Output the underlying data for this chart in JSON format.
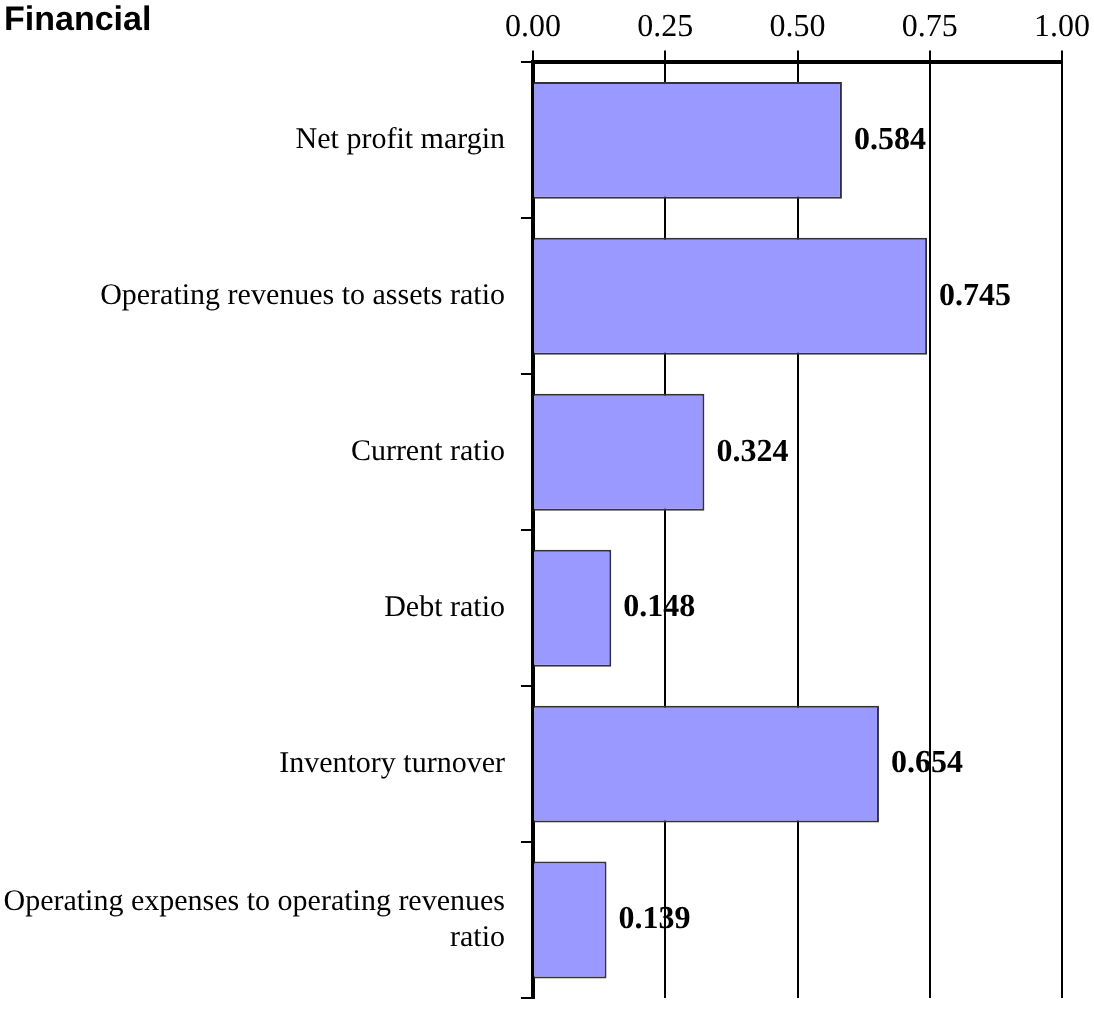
{
  "chart_data": {
    "type": "bar",
    "orientation": "horizontal",
    "title": "Financial",
    "categories": [
      "Net profit margin",
      "Operating revenues to assets ratio",
      "Current ratio",
      "Debt ratio",
      "Inventory turnover",
      "Operating expenses to operating revenues ratio"
    ],
    "values": [
      0.584,
      0.745,
      0.324,
      0.148,
      0.654,
      0.139
    ],
    "color": "#9999ff",
    "xlim": [
      0,
      1
    ],
    "xticks": [
      {
        "value": 0,
        "label": "0.00"
      },
      {
        "value": 0.25,
        "label": "0.25"
      },
      {
        "value": 0.5,
        "label": "0.50"
      },
      {
        "value": 0.75,
        "label": "0.75"
      },
      {
        "value": 1,
        "label": "1.00"
      }
    ],
    "grid": "x",
    "data_labels": true
  }
}
